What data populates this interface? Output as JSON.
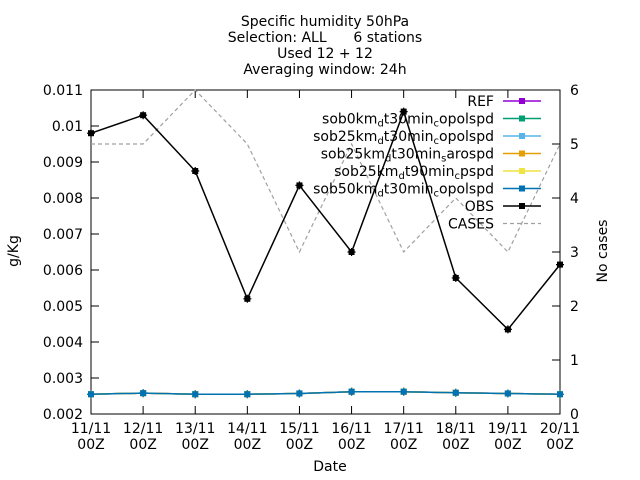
{
  "chart_data": {
    "type": "line",
    "title_lines": [
      "Specific humidity 50hPa",
      "Selection: ALL      6 stations",
      "Used 12 + 12",
      "Averaging window: 24h"
    ],
    "xlabel": "Date",
    "ylabel": "g/Kg",
    "y2label": "No cases",
    "categories": [
      [
        "11/11",
        "00Z"
      ],
      [
        "12/11",
        "00Z"
      ],
      [
        "13/11",
        "00Z"
      ],
      [
        "14/11",
        "00Z"
      ],
      [
        "15/11",
        "00Z"
      ],
      [
        "16/11",
        "00Z"
      ],
      [
        "17/11",
        "00Z"
      ],
      [
        "18/11",
        "00Z"
      ],
      [
        "19/11",
        "00Z"
      ],
      [
        "20/11",
        "00Z"
      ]
    ],
    "ylim": [
      0.002,
      0.011
    ],
    "yticks": [
      "0.002",
      "0.003",
      "0.004",
      "0.005",
      "0.006",
      "0.007",
      "0.008",
      "0.009",
      "0.01",
      "0.011"
    ],
    "y2lim": [
      0,
      6
    ],
    "y2ticks": [
      "0",
      "1",
      "2",
      "3",
      "4",
      "5",
      "6"
    ],
    "series": [
      {
        "name": "REF",
        "color": "#9400d3",
        "axis": "y",
        "style": "line-points",
        "values": [
          0.00255,
          0.00258,
          0.00255,
          0.00255,
          0.00257,
          0.00262,
          0.00262,
          0.00259,
          0.00257,
          0.00255
        ]
      },
      {
        "name": "sob0km_d t30min_c opolspd",
        "color": "#009e73",
        "axis": "y",
        "style": "line-points",
        "values": [
          0.00255,
          0.00258,
          0.00255,
          0.00255,
          0.00257,
          0.00262,
          0.00262,
          0.00259,
          0.00257,
          0.00255
        ]
      },
      {
        "name": "sob25km_d t30min_c opolspd",
        "color": "#56b4e9",
        "axis": "y",
        "style": "line-points",
        "values": [
          0.00255,
          0.00258,
          0.00255,
          0.00255,
          0.00257,
          0.00262,
          0.00262,
          0.00259,
          0.00257,
          0.00255
        ]
      },
      {
        "name": "sob25km_d t30min_s arospd",
        "color": "#e69f00",
        "axis": "y",
        "style": "line-points",
        "values": [
          0.00255,
          0.00258,
          0.00255,
          0.00255,
          0.00257,
          0.00262,
          0.00262,
          0.00259,
          0.00257,
          0.00255
        ]
      },
      {
        "name": "sob25km_d t90min_c pspd",
        "color": "#f0e442",
        "axis": "y",
        "style": "line-points",
        "values": [
          0.00255,
          0.00258,
          0.00255,
          0.00255,
          0.00257,
          0.00262,
          0.00262,
          0.00259,
          0.00257,
          0.00255
        ]
      },
      {
        "name": "sob50km_d t30min_c opolspd",
        "color": "#0072b2",
        "axis": "y",
        "style": "line-points",
        "values": [
          0.00255,
          0.00258,
          0.00255,
          0.00255,
          0.00257,
          0.00262,
          0.00262,
          0.00259,
          0.00257,
          0.00255
        ]
      },
      {
        "name": "OBS",
        "color": "#000000",
        "axis": "y",
        "style": "line-points",
        "values": [
          0.0098,
          0.0103,
          0.00875,
          0.0052,
          0.00835,
          0.0065,
          0.0104,
          0.00578,
          0.00435,
          0.00615
        ]
      },
      {
        "name": "CASES",
        "color": "#a0a0a0",
        "axis": "y2",
        "style": "dashed",
        "values": [
          5,
          5,
          6,
          5,
          3,
          5,
          3,
          4,
          3,
          5
        ]
      }
    ],
    "legend_labels": [
      {
        "base": "REF"
      },
      {
        "base": "sob0km",
        "sub1": "d",
        "mid": "t30min",
        "sub2": "c",
        "tail": "opolspd"
      },
      {
        "base": "sob25km",
        "sub1": "d",
        "mid": "t30min",
        "sub2": "c",
        "tail": "opolspd"
      },
      {
        "base": "sob25km",
        "sub1": "d",
        "mid": "t30min",
        "sub2": "s",
        "tail": "arospd"
      },
      {
        "base": "sob25km",
        "sub1": "d",
        "mid": "t90min",
        "sub2": "c",
        "tail": "pspd"
      },
      {
        "base": "sob50km",
        "sub1": "d",
        "mid": "t30min",
        "sub2": "c",
        "tail": "opolspd"
      },
      {
        "base": "OBS"
      },
      {
        "base": "CASES"
      }
    ],
    "legend_position": "top-right",
    "grid": false
  }
}
